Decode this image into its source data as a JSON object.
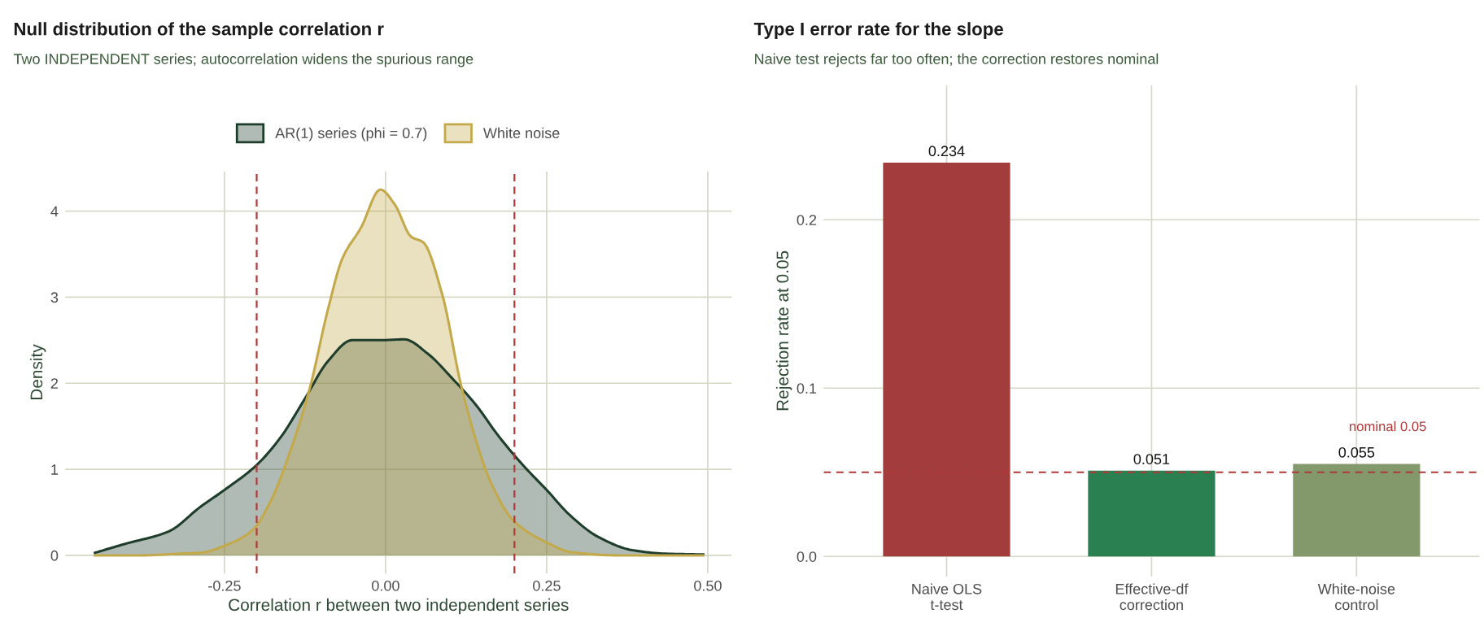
{
  "chart_data": [
    {
      "type": "area",
      "title": "Null distribution of the sample correlation r",
      "subtitle": "Two INDEPENDENT series; autocorrelation widens the spurious range",
      "xlabel": "Correlation r between two independent series",
      "ylabel": "Density",
      "series": [
        {
          "name": "AR(1) series (phi = 0.7)",
          "color": "#1f3d2b",
          "x": [
            -0.451,
            -0.406,
            -0.336,
            -0.288,
            -0.25,
            -0.2,
            -0.163,
            -0.126,
            -0.089,
            -0.052,
            -0.008,
            0.029,
            0.066,
            0.103,
            0.139,
            0.176,
            0.213,
            0.25,
            0.287,
            0.331,
            0.383,
            0.434,
            0.493
          ],
          "values": [
            0.03,
            0.13,
            0.28,
            0.56,
            0.76,
            1.05,
            1.37,
            1.81,
            2.26,
            2.5,
            2.5,
            2.51,
            2.34,
            2.06,
            1.76,
            1.38,
            1.05,
            0.76,
            0.46,
            0.21,
            0.06,
            0.02,
            0.01
          ]
        },
        {
          "name": "White noise",
          "color": "#c4a94a",
          "x": [
            -0.451,
            -0.378,
            -0.319,
            -0.288,
            -0.244,
            -0.207,
            -0.177,
            -0.148,
            -0.118,
            -0.089,
            -0.067,
            -0.038,
            -0.008,
            0.014,
            0.04,
            0.058,
            0.088,
            0.117,
            0.139,
            0.162,
            0.199,
            0.25,
            0.287,
            0.361,
            0.493
          ],
          "values": [
            0.0,
            0.0,
            0.02,
            0.03,
            0.13,
            0.29,
            0.65,
            1.21,
            1.93,
            2.87,
            3.45,
            3.81,
            4.25,
            4.08,
            3.7,
            3.64,
            3.03,
            1.98,
            1.37,
            0.87,
            0.4,
            0.15,
            0.04,
            0.0,
            0.0
          ]
        }
      ],
      "xlim": [
        -0.497,
        0.537
      ],
      "xticks": [
        {
          "value": -0.25,
          "label": "-0.25"
        },
        {
          "value": 0,
          "label": "0.00"
        },
        {
          "value": 0.25,
          "label": "0.25"
        },
        {
          "value": 0.5,
          "label": "0.50"
        }
      ],
      "ylim": [
        -0.21,
        4.46
      ],
      "yticks": [
        0,
        1,
        2,
        3,
        4
      ],
      "ref_lines": [
        {
          "axis": "x",
          "value": -0.2,
          "color": "#b03a3a",
          "line_style": "dashed"
        },
        {
          "axis": "x",
          "value": 0.2,
          "color": "#b03a3a",
          "line_style": "dashed"
        }
      ],
      "grid": true,
      "legend": "top"
    },
    {
      "type": "bar",
      "title": "Type I error rate for the slope",
      "subtitle": "Naive test rejects far too often; the correction restores nominal",
      "ylabel": "Rejection rate at 0.05",
      "categories": [
        "Naive OLS\nt-test",
        "Effective-df\ncorrection",
        "White-noise\ncontrol"
      ],
      "values": [
        0.234,
        0.051,
        0.055
      ],
      "colors": [
        "#a33d3d",
        "#2a8050",
        "#83986b"
      ],
      "ylim": [
        -0.012,
        0.28
      ],
      "yticks": [
        {
          "value": 0.0,
          "label": "0.0"
        },
        0.1,
        0.2
      ],
      "ref_lines": [
        {
          "axis": "y",
          "value": 0.05,
          "label": "nominal 0.05",
          "color": "#b03a3a",
          "line_style": "dashed"
        }
      ],
      "data_labels": true,
      "grid": true
    }
  ]
}
